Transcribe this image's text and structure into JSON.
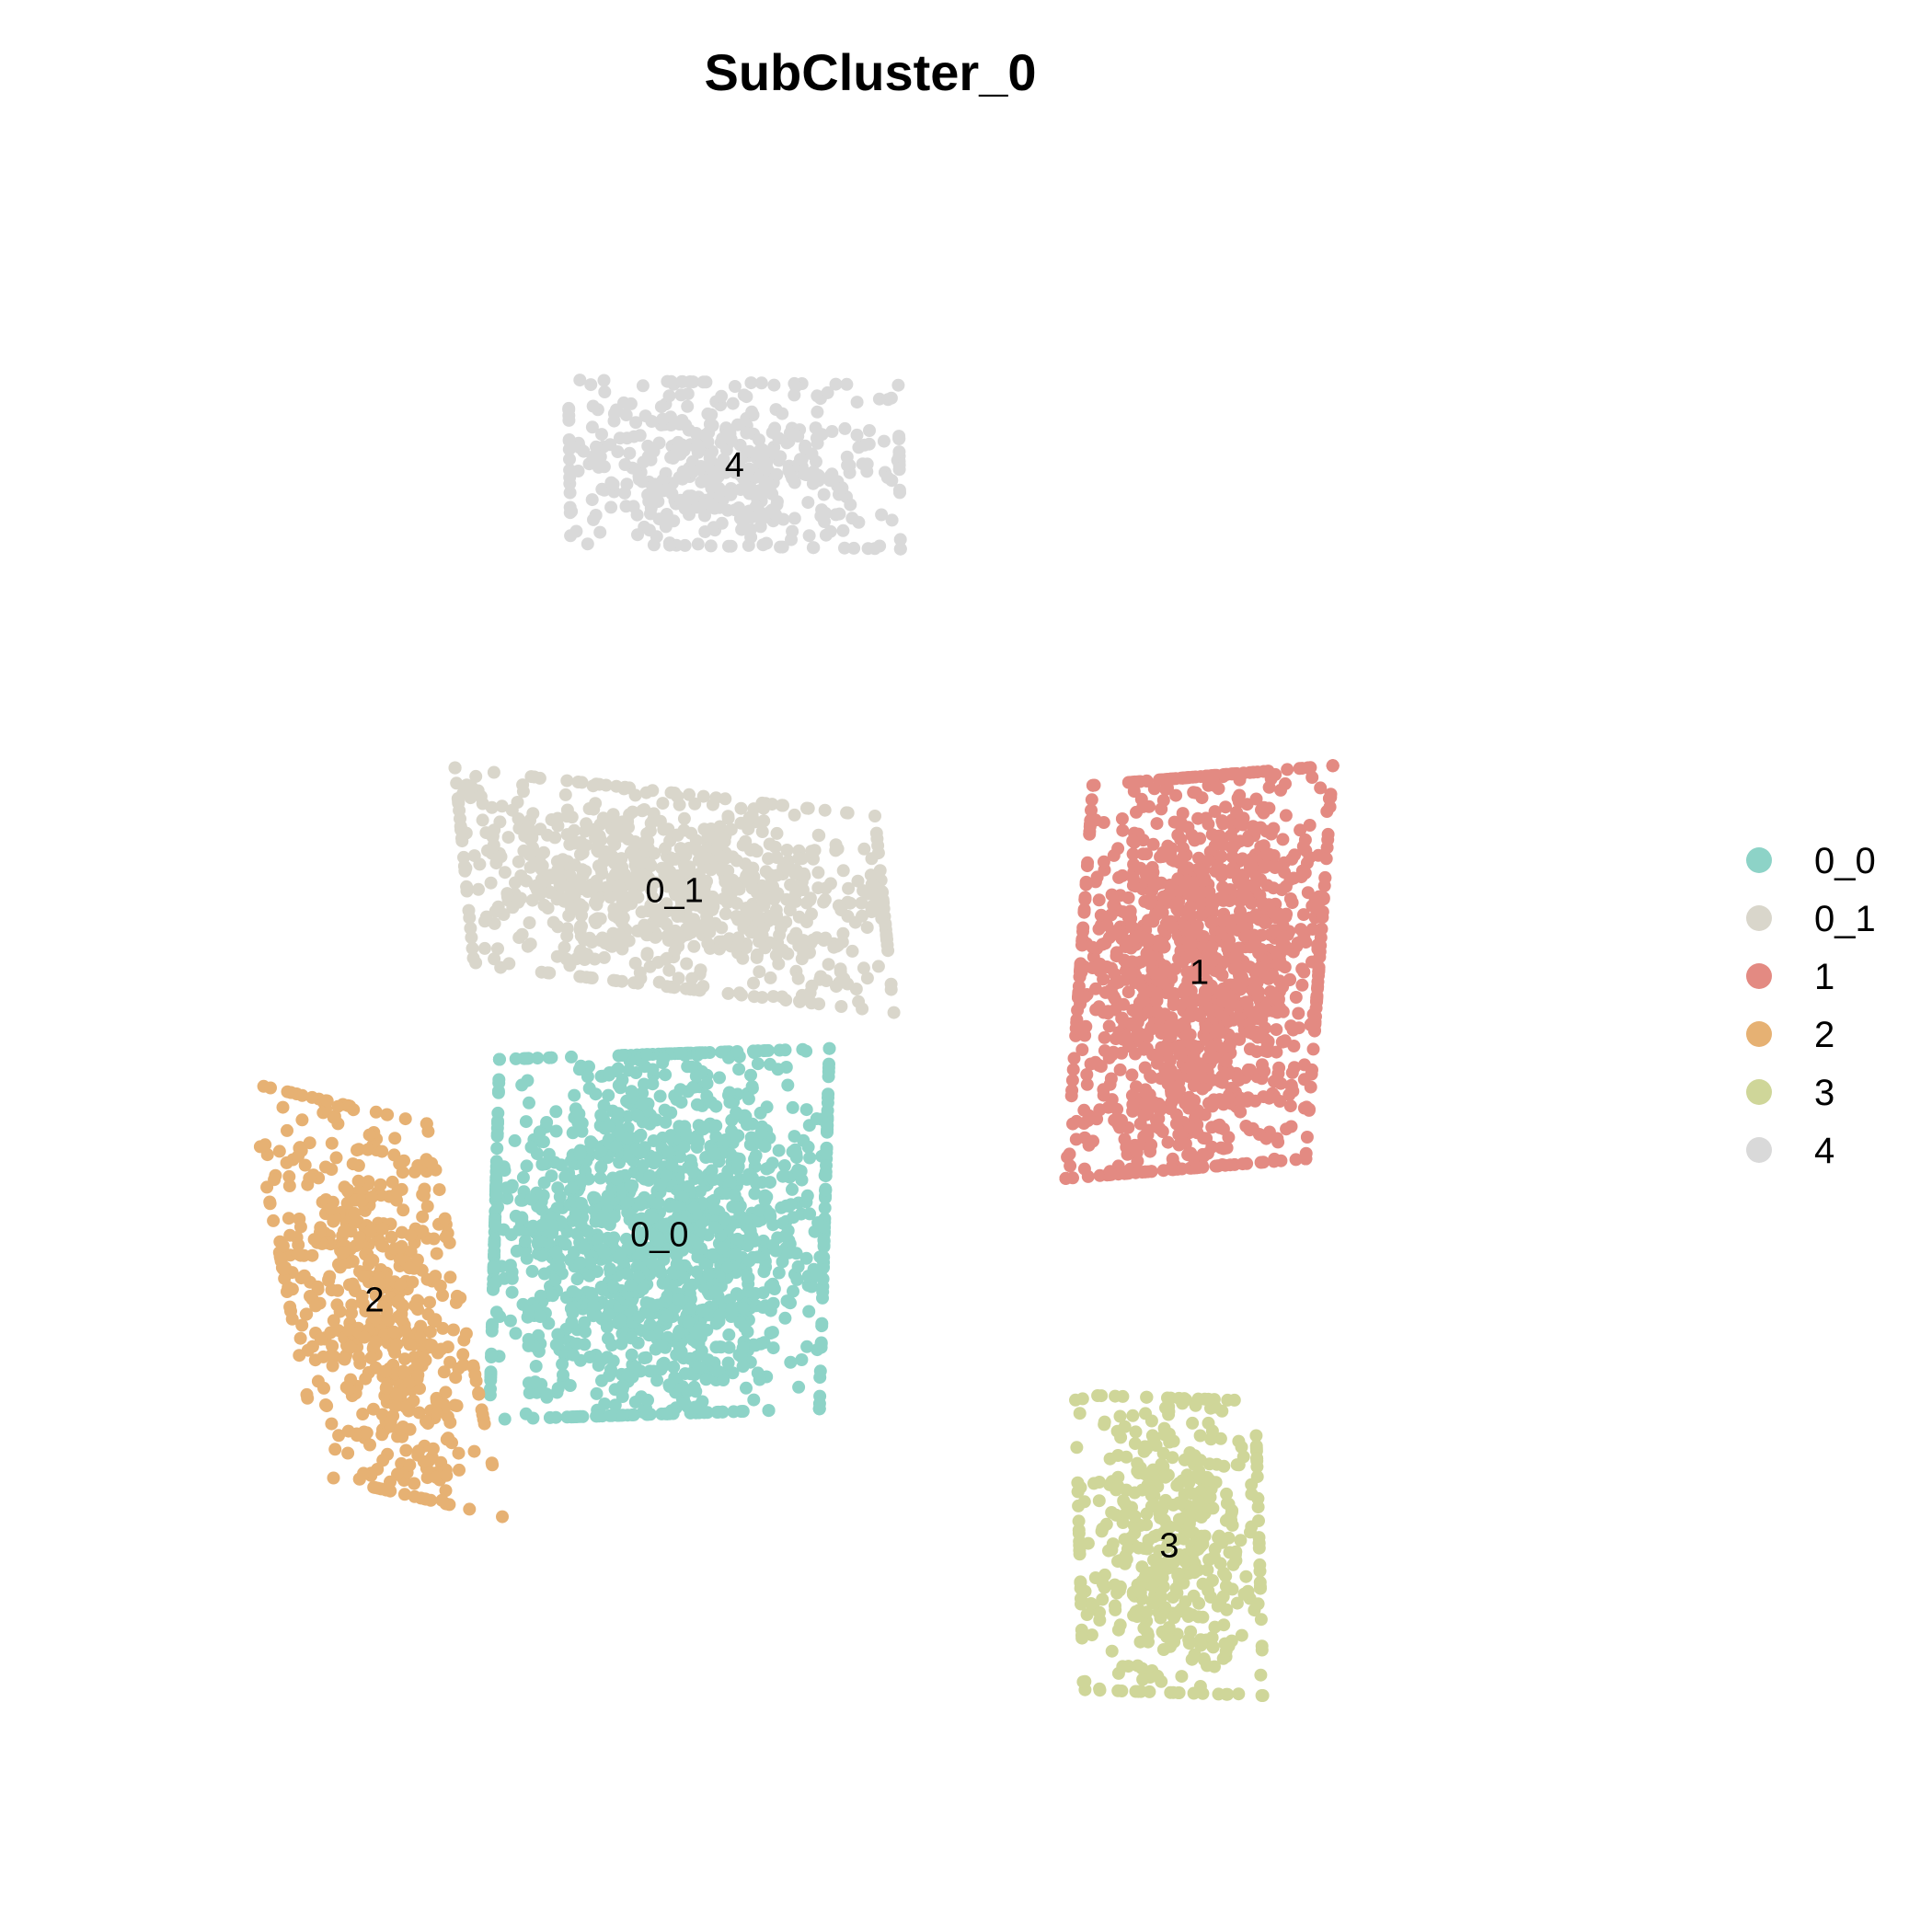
{
  "chart_data": {
    "type": "scatter",
    "title": "SubCluster_0",
    "xlabel": "",
    "ylabel": "",
    "grid": false,
    "axes_visible": false,
    "legend_position": "right",
    "xlim": [
      0,
      100
    ],
    "ylim": [
      0,
      100
    ],
    "series": [
      {
        "name": "0_0",
        "color": "#8DD3C7",
        "label": "0_0",
        "center": [
          36,
          37
        ],
        "spread": [
          11,
          11
        ],
        "tilt": 0.1,
        "n": 1500
      },
      {
        "name": "0_1",
        "color": "#D9D6CB",
        "label": "0_1",
        "center": [
          37,
          58
        ],
        "spread": [
          14,
          6
        ],
        "tilt": -0.35,
        "n": 900
      },
      {
        "name": "1",
        "color": "#E38A82",
        "label": "1",
        "center": [
          72,
          53
        ],
        "spread": [
          8,
          12
        ],
        "tilt": 0.25,
        "n": 1400
      },
      {
        "name": "2",
        "color": "#E6B173",
        "label": "2",
        "center": [
          17,
          33
        ],
        "spread": [
          6,
          12
        ],
        "tilt": -0.7,
        "n": 600
      },
      {
        "name": "3",
        "color": "#CFD699",
        "label": "3",
        "center": [
          70,
          18
        ],
        "spread": [
          6,
          9
        ],
        "tilt": -0.1,
        "n": 500
      },
      {
        "name": "4",
        "color": "#D9D9D9",
        "label": "4",
        "center": [
          41,
          84
        ],
        "spread": [
          11,
          5
        ],
        "tilt": -0.05,
        "n": 450
      }
    ]
  }
}
